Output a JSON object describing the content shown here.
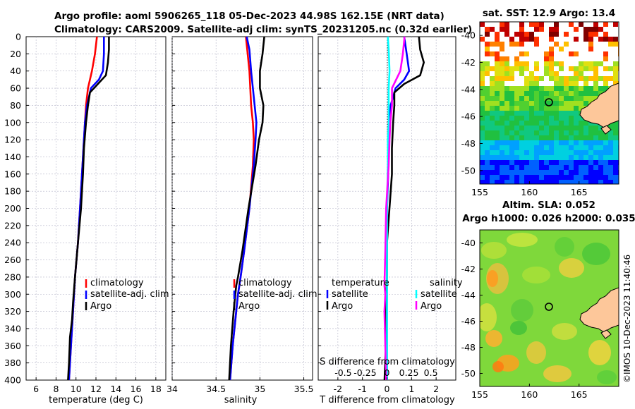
{
  "header": {
    "title_line1": "Argo profile: aoml 5906265_118 05-Dec-2023 44.98S 162.15E (NRT data)",
    "title_line2": "Climatology: CARS2009. Satellite-adj clim: synTS_20231205.nc (0.32d earlier)"
  },
  "stamp": "©IMOS 10-Dec-2023 11:40:46",
  "colors": {
    "climatology": "#ff0000",
    "satellite": "#0000ff",
    "argo": "#000000",
    "argo_s": "#ff00ff",
    "sat_s": "#00ffff",
    "grid": "#b4b4c8",
    "land": "#fdc79a"
  },
  "chart_data": [
    {
      "type": "line",
      "name": "temperature-profile",
      "xlabel": "temperature (deg C)",
      "ylabel": "",
      "xlim": [
        5,
        19
      ],
      "ylim": [
        0,
        400
      ],
      "xticks": [
        "6",
        "8",
        "10",
        "12",
        "14",
        "16",
        "18"
      ],
      "xtick_values": [
        6,
        8,
        10,
        12,
        14,
        16,
        18
      ],
      "yticks": [
        "0",
        "20",
        "40",
        "60",
        "80",
        "100",
        "120",
        "140",
        "160",
        "180",
        "200",
        "220",
        "240",
        "260",
        "280",
        "300",
        "320",
        "340",
        "360",
        "380",
        "400"
      ],
      "legend": [
        "climatology",
        "satellite-adj. clim",
        "Argo"
      ],
      "series": [
        {
          "name": "climatology",
          "color": "#ff0000",
          "y": [
            0,
            20,
            40,
            60,
            80,
            100,
            120,
            140,
            160,
            180,
            200,
            240,
            280,
            320,
            360,
            400
          ],
          "x": [
            12.1,
            11.9,
            11.6,
            11.2,
            11.0,
            10.9,
            10.8,
            10.7,
            10.6,
            10.5,
            10.4,
            10.2,
            9.9,
            9.7,
            9.5,
            9.3
          ]
        },
        {
          "name": "satellite-adj. clim",
          "color": "#0000ff",
          "y": [
            0,
            20,
            40,
            50,
            60,
            80,
            100,
            120,
            140,
            160,
            180,
            200,
            240,
            280,
            320,
            360,
            400
          ],
          "x": [
            12.8,
            12.8,
            12.7,
            12.3,
            11.5,
            11.1,
            10.9,
            10.8,
            10.7,
            10.6,
            10.5,
            10.4,
            10.2,
            9.9,
            9.7,
            9.5,
            9.3
          ]
        },
        {
          "name": "Argo",
          "color": "#000000",
          "y": [
            0,
            15,
            30,
            45,
            55,
            65,
            80,
            100,
            130,
            160,
            200,
            240,
            280,
            310,
            330,
            350,
            380,
            400
          ],
          "x": [
            13.3,
            13.3,
            13.2,
            13.0,
            12.2,
            11.4,
            11.2,
            11.0,
            10.8,
            10.7,
            10.5,
            10.2,
            9.9,
            9.7,
            9.6,
            9.4,
            9.3,
            9.2
          ]
        }
      ]
    },
    {
      "type": "line",
      "name": "salinity-profile",
      "xlabel": "salinity",
      "xlim": [
        34.0,
        35.6
      ],
      "ylim": [
        0,
        400
      ],
      "xticks": [
        "34",
        "34.5",
        "35",
        "35.5"
      ],
      "xtick_values": [
        34,
        34.5,
        35,
        35.5
      ],
      "legend": [
        "climatology",
        "satellite-adj. clim",
        "Argo"
      ],
      "series": [
        {
          "name": "climatology",
          "color": "#ff0000",
          "y": [
            0,
            20,
            40,
            60,
            80,
            100,
            120,
            150,
            200,
            250,
            280,
            300,
            320,
            360,
            400
          ],
          "x": [
            34.84,
            34.86,
            34.88,
            34.89,
            34.9,
            34.92,
            34.93,
            34.92,
            34.88,
            34.82,
            34.78,
            34.75,
            34.73,
            34.69,
            34.66
          ]
        },
        {
          "name": "satellite-adj. clim",
          "color": "#0000ff",
          "y": [
            0,
            15,
            40,
            60,
            80,
            100,
            120,
            150,
            200,
            250,
            280,
            300,
            320,
            360,
            400
          ],
          "x": [
            34.85,
            34.88,
            34.9,
            34.92,
            34.94,
            34.96,
            34.95,
            34.93,
            34.88,
            34.82,
            34.78,
            34.75,
            34.73,
            34.69,
            34.66
          ]
        },
        {
          "name": "Argo",
          "color": "#000000",
          "y": [
            0,
            20,
            40,
            60,
            80,
            100,
            120,
            150,
            200,
            250,
            280,
            290,
            300,
            320,
            360,
            400
          ],
          "x": [
            35.05,
            35.03,
            35.0,
            35.0,
            35.04,
            35.03,
            34.99,
            34.95,
            34.87,
            34.8,
            34.75,
            34.73,
            34.72,
            34.7,
            34.67,
            34.65
          ]
        }
      ]
    },
    {
      "type": "line",
      "name": "difference-profile",
      "xlabel": "T difference from climatology",
      "xlabel_top": "S difference from climatology",
      "xlim": [
        -2.8,
        2.8
      ],
      "ylim": [
        0,
        400
      ],
      "xticks": [
        "-2",
        "-1",
        "0",
        "1",
        "2"
      ],
      "xtick_values": [
        -2,
        -1,
        0,
        1,
        2
      ],
      "s_ticks": [
        "-0.5",
        "-0.25",
        "0",
        "0.25",
        "0.5"
      ],
      "legend_t_title": "temperature",
      "legend_s_title": "salinity",
      "legend_t": [
        "satellite",
        "Argo"
      ],
      "legend_s": [
        "satellite",
        "Argo"
      ],
      "series": [
        {
          "name": "T satellite",
          "color": "#0000ff",
          "y": [
            0,
            20,
            40,
            50,
            60,
            80,
            100,
            120,
            160,
            200,
            240,
            280,
            320,
            360,
            400
          ],
          "x": [
            0.7,
            0.8,
            0.9,
            0.7,
            0.35,
            0.15,
            0.1,
            0.05,
            0.05,
            0.0,
            0.0,
            0.0,
            0.0,
            0.0,
            0.0
          ]
        },
        {
          "name": "T Argo",
          "color": "#000000",
          "y": [
            0,
            15,
            30,
            45,
            55,
            65,
            80,
            100,
            130,
            160,
            200,
            240,
            280,
            320,
            360,
            400
          ],
          "x": [
            1.3,
            1.35,
            1.5,
            1.35,
            0.7,
            0.3,
            0.3,
            0.25,
            0.2,
            0.2,
            0.1,
            0.0,
            0.0,
            -0.05,
            -0.05,
            -0.1
          ]
        },
        {
          "name": "S satellite",
          "color": "#00ffff",
          "y": [
            0,
            15,
            40,
            60,
            80,
            100,
            120,
            150,
            200,
            250,
            300,
            350,
            400
          ],
          "x": [
            0.01,
            0.02,
            0.03,
            0.02,
            0.02,
            0.02,
            0.01,
            0.01,
            0.0,
            0.0,
            0.0,
            0.0,
            0.0
          ]
        },
        {
          "name": "S Argo",
          "color": "#ff00ff",
          "y": [
            0,
            20,
            40,
            60,
            80,
            100,
            120,
            150,
            200,
            250,
            290,
            300,
            320,
            360,
            400
          ],
          "x": [
            0.21,
            0.19,
            0.16,
            0.06,
            0.06,
            0.04,
            0.03,
            0.02,
            -0.01,
            -0.02,
            -0.03,
            -0.02,
            -0.03,
            -0.02,
            -0.01
          ]
        }
      ]
    },
    {
      "type": "heatmap",
      "name": "sst-map",
      "title": "sat. SST: 12.9 Argo: 13.4",
      "xticks": [
        "155",
        "160",
        "165"
      ],
      "yticks": [
        "-40",
        "-42",
        "-44",
        "-46",
        "-48",
        "-50"
      ],
      "xlim": [
        155,
        169
      ],
      "ylim": [
        -51,
        -39
      ]
    },
    {
      "type": "heatmap",
      "name": "sla-map",
      "title_line1": "Altim. SLA: 0.052",
      "title_line2": "Argo h1000: 0.026 h2000: 0.035",
      "xticks": [
        "155",
        "160",
        "165"
      ],
      "yticks": [
        "-40",
        "-42",
        "-44",
        "-46",
        "-48",
        "-50"
      ],
      "xlim": [
        155,
        169
      ],
      "ylim": [
        -51,
        -39
      ]
    }
  ]
}
